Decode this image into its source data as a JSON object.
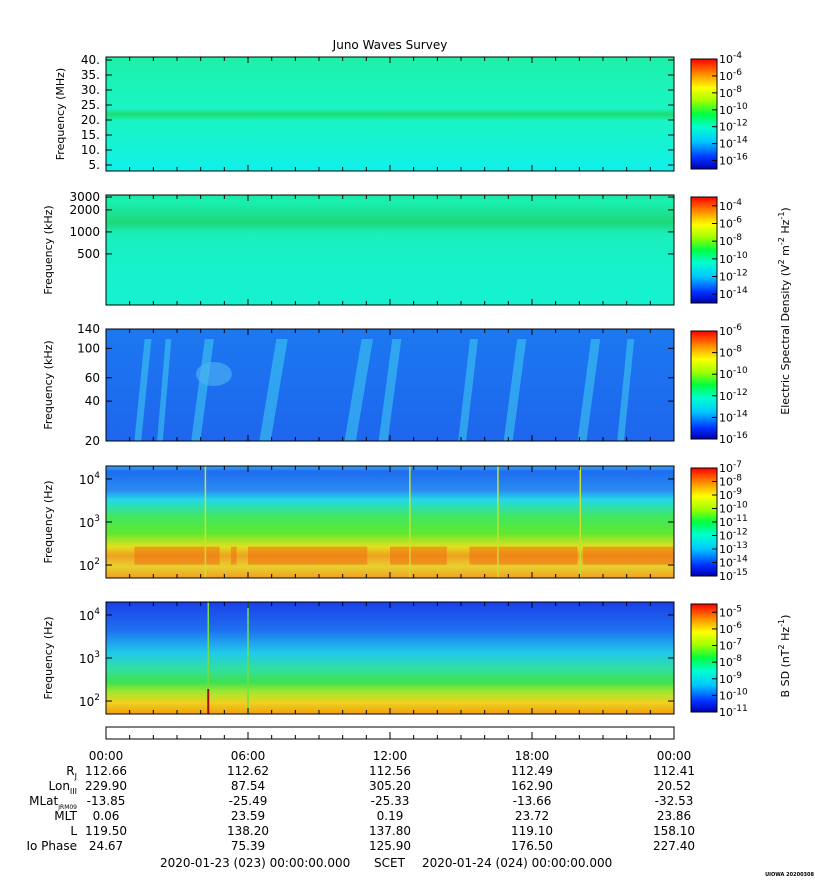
{
  "chart_data": {
    "type": "heatmap",
    "title": "Juno Waves Survey",
    "x_ticks": [
      "00:00",
      "06:00",
      "12:00",
      "18:00",
      "00:00"
    ],
    "panels": [
      {
        "id": "p1",
        "ylabel": "Frequency (MHz)",
        "yticks": [
          "40.",
          "35.",
          "30.",
          "25.",
          "20.",
          "15.",
          "10.",
          "5."
        ],
        "ytick_values": [
          40,
          35,
          30,
          25,
          20,
          15,
          10,
          5
        ],
        "yrange": [
          3,
          41
        ],
        "colorbar_ticks": [
          "-4",
          "-6",
          "-8",
          "-10",
          "-12",
          "-14",
          "-16"
        ],
        "colorbar_range": [
          -17,
          -4
        ],
        "colorbar_base": "10",
        "colors": {
          "background": "#19f5cc",
          "band": "#1ee87a",
          "low": "#10f0e8"
        }
      },
      {
        "id": "p2",
        "ylabel": "Frequency (kHz)",
        "yticks": [
          "3000",
          "2000",
          "1000",
          "500"
        ],
        "ytick_values": [
          3000,
          2000,
          1000,
          500
        ],
        "yscale": "log",
        "yrange": [
          100,
          3200
        ],
        "colorbar_ticks": [
          "-4",
          "-6",
          "-8",
          "-10",
          "-12",
          "-14"
        ],
        "colorbar_range": [
          -15,
          -3
        ],
        "colorbar_base": "10",
        "colors": {
          "background": "#18f2c8",
          "band": "#20e08a"
        }
      },
      {
        "id": "p3",
        "ylabel": "Frequency (kHz)",
        "yticks": [
          "140",
          "100",
          "60",
          "40",
          "20"
        ],
        "ytick_values": [
          140,
          100,
          60,
          40,
          20
        ],
        "yscale": "log",
        "yrange": [
          20,
          140
        ],
        "colorbar_ticks": [
          "-6",
          "-8",
          "-10",
          "-12",
          "-14",
          "-16"
        ],
        "colorbar_range": [
          -16,
          -6
        ],
        "colorbar_base": "10",
        "colors": {
          "background": "#1f6ef0",
          "burst": "#3fd8f0"
        }
      },
      {
        "id": "p4",
        "ylabel": "Frequency (Hz)",
        "ytick_exponents": [
          "4",
          "3",
          "2"
        ],
        "ytick_values": [
          10000,
          1000,
          100
        ],
        "yscale": "log",
        "yrange": [
          50,
          20000
        ],
        "colorbar_ticks": [
          "-7",
          "-8",
          "-9",
          "-10",
          "-11",
          "-12",
          "-13",
          "-14",
          "-15"
        ],
        "colorbar_range": [
          -15,
          -7
        ],
        "colorbar_base": "10",
        "colors": {
          "top": "#1e6cf0",
          "mid": "#20d8e8",
          "green": "#30e040",
          "hot": "#f0a020"
        }
      },
      {
        "id": "p5",
        "ylabel": "Frequency (Hz)",
        "yticks_exponents": [
          "4",
          "3",
          "2"
        ],
        "ytick_values": [
          10000,
          1000,
          100
        ],
        "yscale": "log",
        "yrange": [
          50,
          20000
        ],
        "colorbar_ticks": [
          "-5",
          "-6",
          "-7",
          "-8",
          "-9",
          "-10",
          "-11"
        ],
        "colorbar_range": [
          -11,
          -4.5
        ],
        "colorbar_base": "10",
        "colors": {
          "top": "#1a58f0",
          "mid": "#20d0e8",
          "green": "#40e050",
          "hot": "#f0d020"
        }
      }
    ],
    "colorbar_title_e": "Electric Spectral Density (V",
    "colorbar_title_e_unit1": "2",
    "colorbar_title_e_mid": " m",
    "colorbar_title_e_unit2": "-2",
    "colorbar_title_e_mid2": " Hz",
    "colorbar_title_e_unit3": "-1",
    "colorbar_title_e_end": ")",
    "colorbar_title_b": "B SD (nT",
    "colorbar_title_b_unit1": "2",
    "colorbar_title_b_mid": " Hz",
    "colorbar_title_b_unit2": "-1",
    "colorbar_title_b_end": ")",
    "ephemeris": {
      "rows": [
        {
          "label": "R",
          "sub": "J",
          "values": [
            "112.66",
            "112.62",
            "112.56",
            "112.49",
            "112.41"
          ]
        },
        {
          "label": "Lon",
          "sub": "III",
          "values": [
            "229.90",
            "87.54",
            "305.20",
            "162.90",
            "20.52"
          ]
        },
        {
          "label": "MLat",
          "sub": "JRM09",
          "values": [
            "-13.85",
            "-25.49",
            "-25.33",
            "-13.66",
            "-32.53"
          ]
        },
        {
          "label": "MLT",
          "sub": "",
          "values": [
            "0.06",
            "23.59",
            "0.19",
            "23.72",
            "23.86"
          ]
        },
        {
          "label": "L",
          "sub": "",
          "values": [
            "119.50",
            "138.20",
            "137.80",
            "119.10",
            "158.10"
          ]
        },
        {
          "label": "Io Phase",
          "sub": "",
          "values": [
            "24.67",
            "75.39",
            "125.90",
            "176.50",
            "227.40"
          ]
        }
      ]
    },
    "time_range_start": "2020-01-23 (023) 00:00:00.000",
    "time_range_label": "SCET",
    "time_range_end": "2020-01-24 (024) 00:00:00.000",
    "credit": "UIOWA 20200308"
  }
}
